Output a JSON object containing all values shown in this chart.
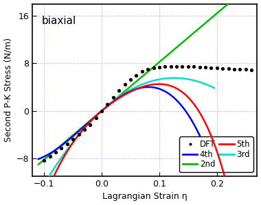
{
  "title": "biaxial",
  "xlabel": "Lagrangian Strain η",
  "ylabel": "Second P-K Stress (N/m)",
  "xlim": [
    -0.12,
    0.27
  ],
  "ylim": [
    -11,
    18
  ],
  "yticks": [
    -8,
    0,
    8,
    16
  ],
  "xticks": [
    -0.1,
    0.0,
    0.1,
    0.2
  ],
  "background_color": "#ffffff",
  "dft_color": "black",
  "color_2nd": "#00bb00",
  "color_3rd": "#00ddcc",
  "color_4th": "#0000ff",
  "color_5th": "#ff0000",
  "dft_eta": [
    -0.1,
    -0.09,
    -0.08,
    -0.07,
    -0.06,
    -0.05,
    -0.04,
    -0.03,
    -0.02,
    -0.01,
    0.0,
    0.01,
    0.02,
    0.03,
    0.04,
    0.05,
    0.06,
    0.07,
    0.08,
    0.09,
    0.1,
    0.11,
    0.12,
    0.13,
    0.14,
    0.15,
    0.16,
    0.17,
    0.18,
    0.19,
    0.2,
    0.21,
    0.22,
    0.23,
    0.24,
    0.25,
    0.26
  ],
  "dft_stress": [
    -8.3,
    -7.7,
    -7.0,
    -6.3,
    -5.6,
    -4.8,
    -4.0,
    -3.2,
    -2.3,
    -1.2,
    0.0,
    1.1,
    2.3,
    3.4,
    4.4,
    5.3,
    6.0,
    6.6,
    7.0,
    7.2,
    7.35,
    7.4,
    7.45,
    7.5,
    7.5,
    7.45,
    7.4,
    7.35,
    7.3,
    7.25,
    7.2,
    7.15,
    7.1,
    7.05,
    7.0,
    6.95,
    6.9
  ],
  "coeff_2nd": [
    82.0,
    0.0,
    0.0,
    0.0,
    0.0
  ],
  "coeff_3rd": [
    88.0,
    -350.0,
    0.0,
    0.0,
    0.0
  ],
  "coeff_4th": [
    82.0,
    -200.0,
    -2500.0,
    0.0,
    0.0
  ],
  "coeff_5th": [
    82.0,
    -400.0,
    1500.0,
    -12000.0,
    0.0
  ],
  "eta_2nd_range": [
    -0.11,
    0.265
  ],
  "eta_3rd_range": [
    -0.11,
    0.195
  ],
  "eta_4th_range": [
    -0.11,
    0.175
  ],
  "eta_5th_range": [
    -0.11,
    0.265
  ]
}
